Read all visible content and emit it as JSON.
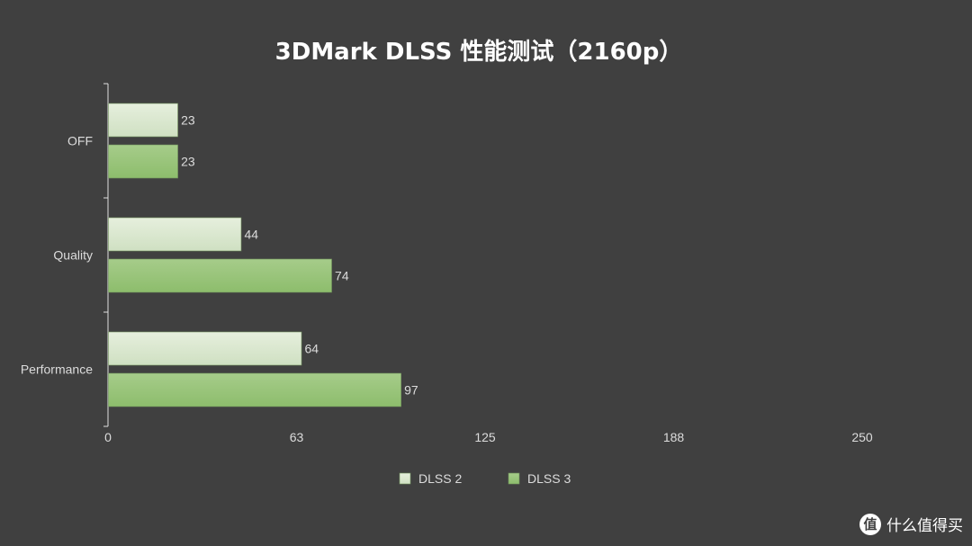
{
  "chart_data": {
    "type": "bar",
    "orientation": "horizontal",
    "title": "3DMark DLSS 性能测试（2160p）",
    "categories": [
      "OFF",
      "Quality",
      "Performance"
    ],
    "series": [
      {
        "name": "DLSS 2",
        "values": [
          23,
          44,
          64
        ],
        "color": "#cfe0c2"
      },
      {
        "name": "DLSS 3",
        "values": [
          23,
          74,
          97
        ],
        "color": "#8dbd6c"
      }
    ],
    "xlim": [
      0,
      250
    ],
    "xticks": [
      "0",
      "63",
      "125",
      "188",
      "250"
    ],
    "xtick_values": [
      0,
      62.5,
      125,
      187.5,
      250
    ],
    "grid": false,
    "legend_position": "bottom-center",
    "background": "#404040"
  },
  "watermark": {
    "logo": "值",
    "text": "什么值得买"
  }
}
